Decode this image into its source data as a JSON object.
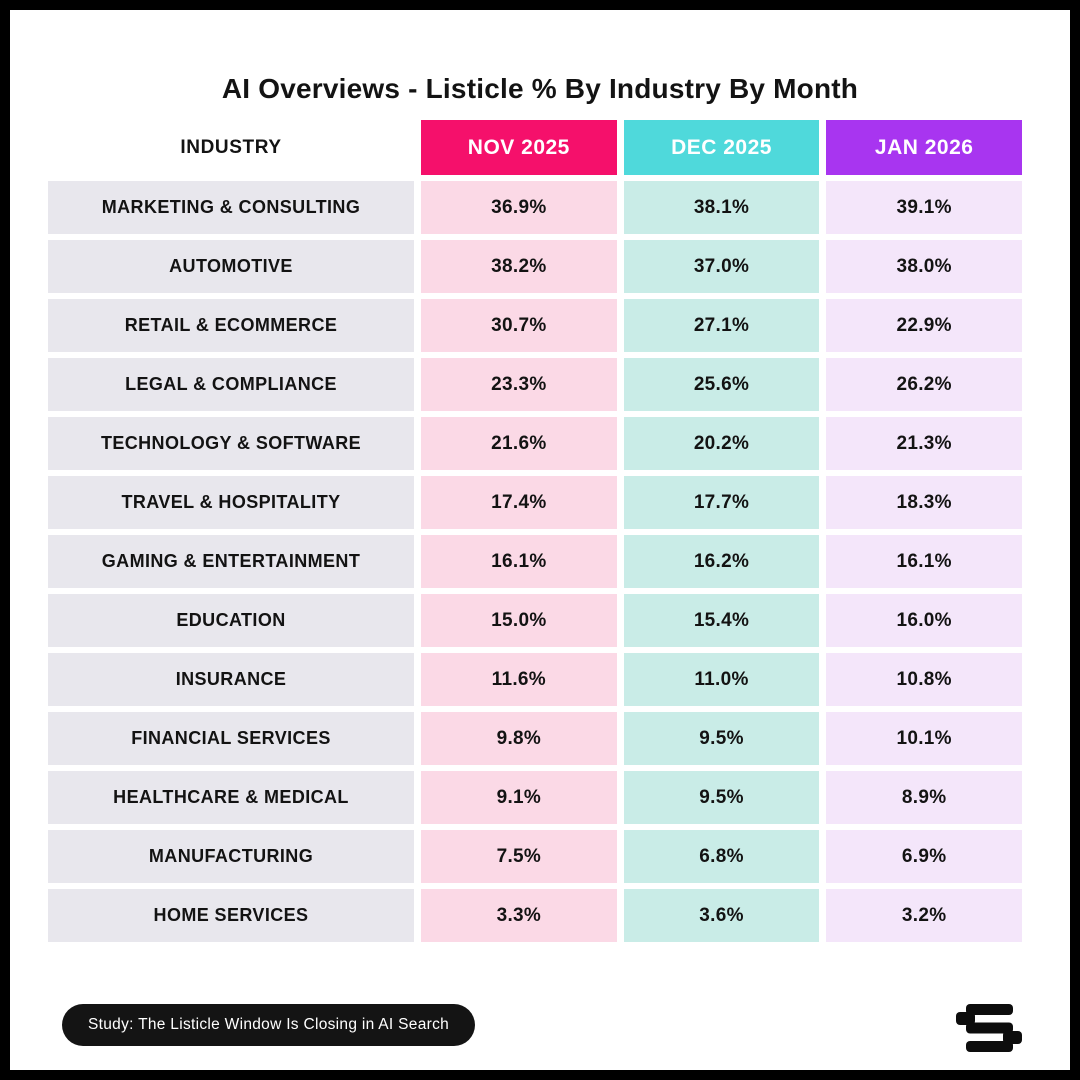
{
  "title": "AI Overviews - Listicle % By Industry By Month",
  "table": {
    "industry_header": "INDUSTRY",
    "month_headers": [
      {
        "label": "NOV 2025"
      },
      {
        "label": "DEC 2025"
      },
      {
        "label": "JAN 2026"
      }
    ],
    "rows": [
      {
        "industry": "MARKETING & CONSULTING",
        "values": [
          "36.9%",
          "38.1%",
          "39.1%"
        ]
      },
      {
        "industry": "AUTOMOTIVE",
        "values": [
          "38.2%",
          "37.0%",
          "38.0%"
        ]
      },
      {
        "industry": "RETAIL & ECOMMERCE",
        "values": [
          "30.7%",
          "27.1%",
          "22.9%"
        ]
      },
      {
        "industry": "LEGAL & COMPLIANCE",
        "values": [
          "23.3%",
          "25.6%",
          "26.2%"
        ]
      },
      {
        "industry": "TECHNOLOGY & SOFTWARE",
        "values": [
          "21.6%",
          "20.2%",
          "21.3%"
        ]
      },
      {
        "industry": "TRAVEL & HOSPITALITY",
        "values": [
          "17.4%",
          "17.7%",
          "18.3%"
        ]
      },
      {
        "industry": "GAMING & ENTERTAINMENT",
        "values": [
          "16.1%",
          "16.2%",
          "16.1%"
        ]
      },
      {
        "industry": "EDUCATION",
        "values": [
          "15.0%",
          "15.4%",
          "16.0%"
        ]
      },
      {
        "industry": "INSURANCE",
        "values": [
          "11.6%",
          "11.0%",
          "10.8%"
        ]
      },
      {
        "industry": "FINANCIAL SERVICES",
        "values": [
          "9.8%",
          "9.5%",
          "10.1%"
        ]
      },
      {
        "industry": "HEALTHCARE & MEDICAL",
        "values": [
          "9.1%",
          "9.5%",
          "8.9%"
        ]
      },
      {
        "industry": "MANUFACTURING",
        "values": [
          "7.5%",
          "6.8%",
          "6.9%"
        ]
      },
      {
        "industry": "HOME SERVICES",
        "values": [
          "3.3%",
          "3.6%",
          "3.2%"
        ]
      }
    ]
  },
  "footer": {
    "badge_label": "Study: The Listicle Window Is Closing in AI Search",
    "logo": "s-bars-logo"
  },
  "colors": {
    "nov_header": "#F5106B",
    "dec_header": "#4FD9DB",
    "jan_header": "#A835F0",
    "nov_cell": "#FBD9E6",
    "dec_cell": "#C9ECE7",
    "jan_cell": "#F4E6FA",
    "industry_cell": "#E8E7ED",
    "badge_bg": "#141414",
    "text": "#131313",
    "frame": "#000000",
    "background": "#FFFFFF"
  },
  "chart_data": {
    "type": "table",
    "title": "AI Overviews - Listicle % By Industry By Month",
    "columns": [
      "INDUSTRY",
      "NOV 2025",
      "DEC 2025",
      "JAN 2026"
    ],
    "categories": [
      "MARKETING & CONSULTING",
      "AUTOMOTIVE",
      "RETAIL & ECOMMERCE",
      "LEGAL & COMPLIANCE",
      "TECHNOLOGY & SOFTWARE",
      "TRAVEL & HOSPITALITY",
      "GAMING & ENTERTAINMENT",
      "EDUCATION",
      "INSURANCE",
      "FINANCIAL SERVICES",
      "HEALTHCARE & MEDICAL",
      "MANUFACTURING",
      "HOME SERVICES"
    ],
    "series": [
      {
        "name": "NOV 2025",
        "values": [
          36.9,
          38.2,
          30.7,
          23.3,
          21.6,
          17.4,
          16.1,
          15.0,
          11.6,
          9.8,
          9.1,
          7.5,
          3.3
        ]
      },
      {
        "name": "DEC 2025",
        "values": [
          38.1,
          37.0,
          27.1,
          25.6,
          20.2,
          17.7,
          16.2,
          15.4,
          11.0,
          9.5,
          9.5,
          6.8,
          3.6
        ]
      },
      {
        "name": "JAN 2026",
        "values": [
          39.1,
          38.0,
          22.9,
          26.2,
          21.3,
          18.3,
          16.1,
          16.0,
          10.8,
          10.1,
          8.9,
          6.9,
          3.2
        ]
      }
    ],
    "unit": "%",
    "legend_position": "top",
    "grid": false
  }
}
